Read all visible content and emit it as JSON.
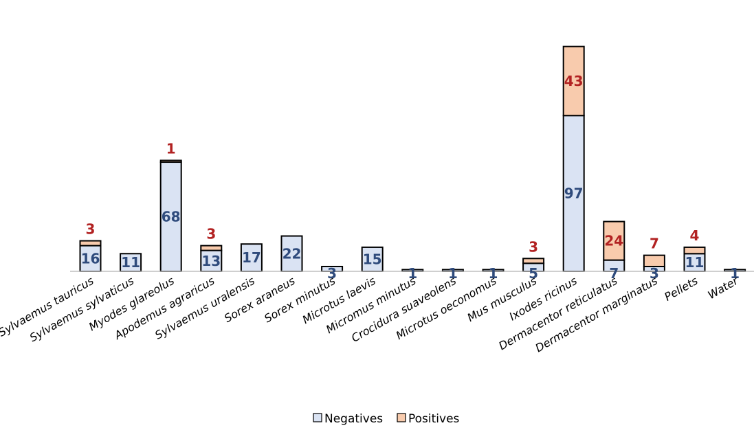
{
  "chart_data": {
    "type": "bar",
    "stacked": true,
    "title": "",
    "xlabel": "",
    "ylabel": "",
    "ylim": [
      0,
      145
    ],
    "grid": false,
    "legend_position": "bottom-center",
    "categories": [
      "Sylvaemus tauricus",
      "Sylvaemus sylvaticus",
      "Myodes glareolus",
      "Apodemus agraricus",
      "Sylvaemus uralensis",
      "Sorex araneus",
      "Sorex minutus",
      "Microtus laevis",
      "Micromus minutus",
      "Crocidura suaveolens",
      "Microtus oeconomus",
      "Mus musculus",
      "Ixodes ricinus",
      "Dermacentor reticulatus",
      "Dermacentor marginatus",
      "Pellets",
      "Water"
    ],
    "series": [
      {
        "name": "Negatives",
        "color": "#dae3f3",
        "label_color": "#2f4b7c",
        "values": [
          16,
          11,
          68,
          13,
          17,
          22,
          3,
          15,
          1,
          1,
          1,
          5,
          97,
          7,
          3,
          11,
          1
        ]
      },
      {
        "name": "Positives",
        "color": "#f8cbad",
        "label_color": "#b22222",
        "values": [
          3,
          0,
          1,
          3,
          0,
          0,
          0,
          0,
          0,
          0,
          0,
          3,
          43,
          24,
          7,
          4,
          0
        ]
      }
    ]
  }
}
